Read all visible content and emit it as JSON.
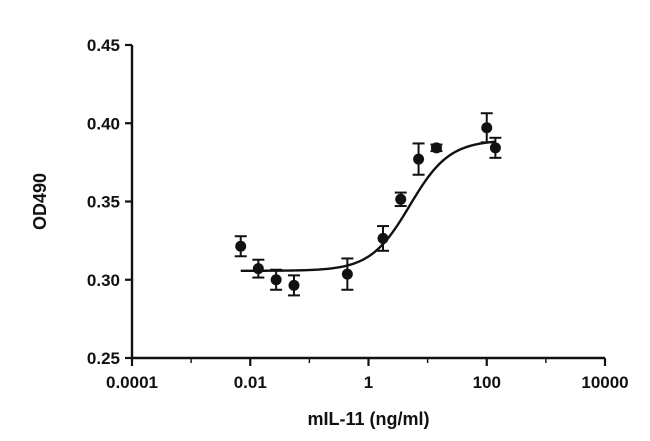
{
  "chart_data": {
    "type": "scatter",
    "title": "",
    "xlabel": "mIL-11 (ng/ml)",
    "ylabel": "OD490",
    "xscale": "log",
    "xlim": [
      0.0001,
      10000
    ],
    "ylim": [
      0.25,
      0.45
    ],
    "xticks": [
      0.0001,
      0.01,
      1,
      100,
      10000
    ],
    "xtick_labels": [
      "0.0001",
      "0.01",
      "1",
      "100",
      "10000"
    ],
    "yticks": [
      0.25,
      0.3,
      0.35,
      0.4,
      0.45
    ],
    "ytick_labels": [
      "0.25",
      "0.30",
      "0.35",
      "0.40",
      "0.45"
    ],
    "grid": false,
    "series": [
      {
        "x": [
          0.0069,
          0.0137,
          0.0274,
          0.0549,
          0.439,
          1.76,
          3.51,
          7.03,
          14.1,
          100,
          140
        ],
        "y": [
          0.3214,
          0.3071,
          0.3,
          0.2964,
          0.3036,
          0.3264,
          0.3514,
          0.3771,
          0.3843,
          0.3971,
          0.3843
        ],
        "err": [
          0.0064,
          0.0057,
          0.0064,
          0.0064,
          0.01,
          0.0079,
          0.0043,
          0.01,
          0.0021,
          0.0093,
          0.0064
        ]
      }
    ],
    "fit_curve": {
      "type": "4PL",
      "bottom": 0.3057,
      "top": 0.3893,
      "ec50": 5.0,
      "hill": 1.3,
      "x_range": [
        0.0069,
        140
      ]
    }
  }
}
